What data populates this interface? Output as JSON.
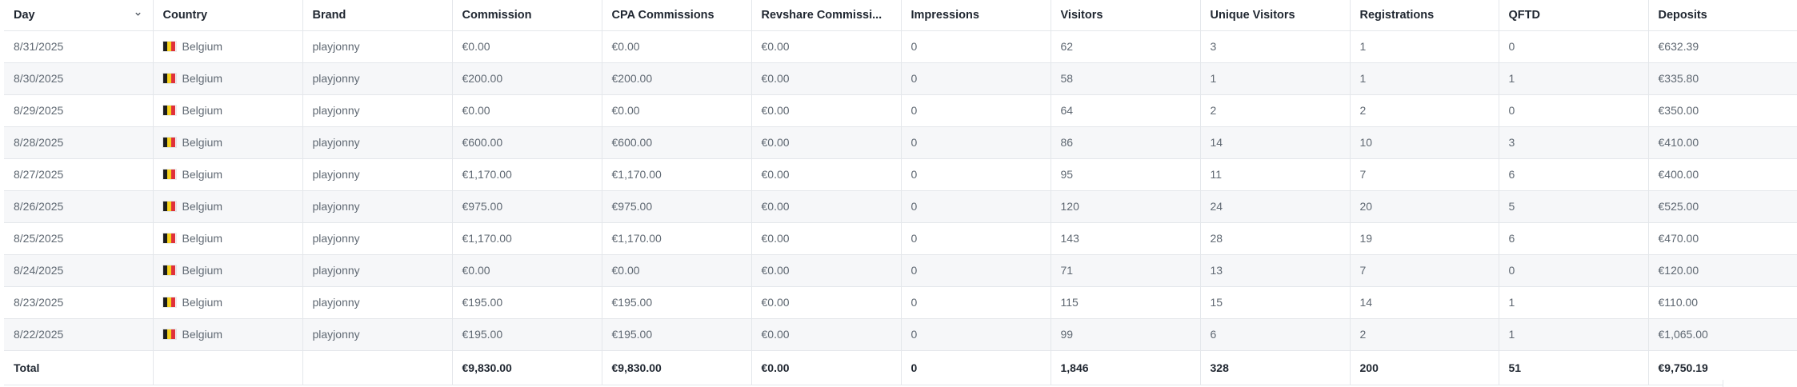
{
  "colors": {
    "flag_black": "#1c1c1c",
    "flag_yellow": "#f6d21e",
    "flag_red": "#e0313a",
    "grid_line": "#e4e7eb",
    "stripe": "#f6f7f9"
  },
  "table": {
    "headers": [
      "Day",
      "Country",
      "Brand",
      "Commission",
      "CPA Commissions",
      "Revshare Commissi...",
      "Impressions",
      "Visitors",
      "Unique Visitors",
      "Registrations",
      "QFTD",
      "Deposits"
    ],
    "sort_icon": "chevron-down-icon",
    "country_flag_icon": "belgium-flag-icon",
    "rows": [
      [
        "8/31/2025",
        "Belgium",
        "playjonny",
        "€0.00",
        "€0.00",
        "€0.00",
        "0",
        "62",
        "3",
        "1",
        "0",
        "€632.39"
      ],
      [
        "8/30/2025",
        "Belgium",
        "playjonny",
        "€200.00",
        "€200.00",
        "€0.00",
        "0",
        "58",
        "1",
        "1",
        "1",
        "€335.80"
      ],
      [
        "8/29/2025",
        "Belgium",
        "playjonny",
        "€0.00",
        "€0.00",
        "€0.00",
        "0",
        "64",
        "2",
        "2",
        "0",
        "€350.00"
      ],
      [
        "8/28/2025",
        "Belgium",
        "playjonny",
        "€600.00",
        "€600.00",
        "€0.00",
        "0",
        "86",
        "14",
        "10",
        "3",
        "€410.00"
      ],
      [
        "8/27/2025",
        "Belgium",
        "playjonny",
        "€1,170.00",
        "€1,170.00",
        "€0.00",
        "0",
        "95",
        "11",
        "7",
        "6",
        "€400.00"
      ],
      [
        "8/26/2025",
        "Belgium",
        "playjonny",
        "€975.00",
        "€975.00",
        "€0.00",
        "0",
        "120",
        "24",
        "20",
        "5",
        "€525.00"
      ],
      [
        "8/25/2025",
        "Belgium",
        "playjonny",
        "€1,170.00",
        "€1,170.00",
        "€0.00",
        "0",
        "143",
        "28",
        "19",
        "6",
        "€470.00"
      ],
      [
        "8/24/2025",
        "Belgium",
        "playjonny",
        "€0.00",
        "€0.00",
        "€0.00",
        "0",
        "71",
        "13",
        "7",
        "0",
        "€120.00"
      ],
      [
        "8/23/2025",
        "Belgium",
        "playjonny",
        "€195.00",
        "€195.00",
        "€0.00",
        "0",
        "115",
        "15",
        "14",
        "1",
        "€110.00"
      ],
      [
        "8/22/2025",
        "Belgium",
        "playjonny",
        "€195.00",
        "€195.00",
        "€0.00",
        "0",
        "99",
        "6",
        "2",
        "1",
        "€1,065.00"
      ]
    ],
    "total": [
      "Total",
      "",
      "",
      "€9,830.00",
      "€9,830.00",
      "€0.00",
      "0",
      "1,846",
      "328",
      "200",
      "51",
      "€9,750.19"
    ]
  }
}
